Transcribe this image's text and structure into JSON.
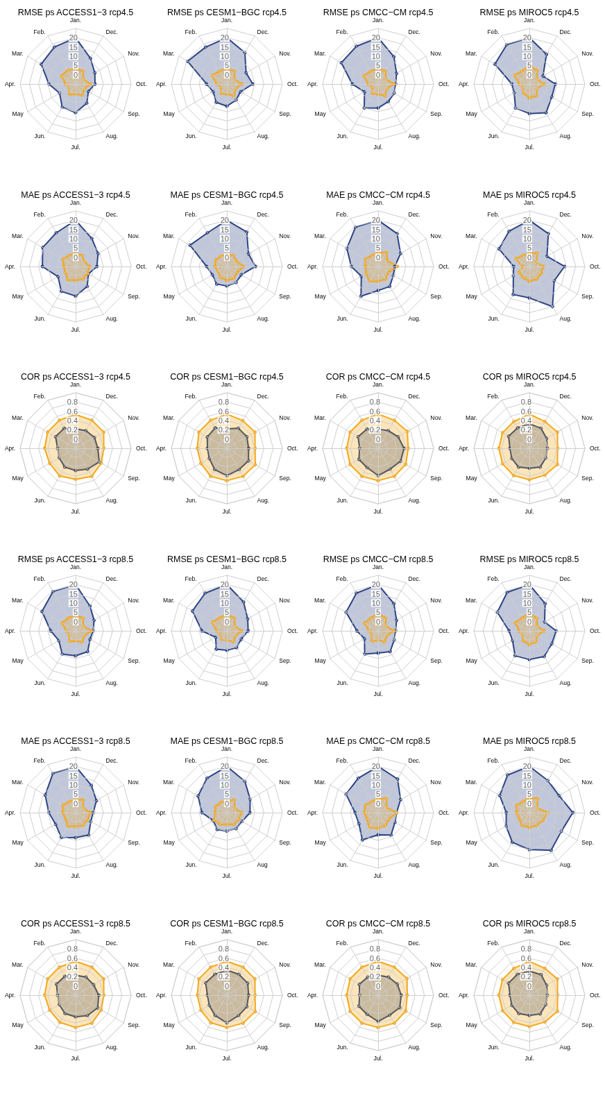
{
  "chart_data": [
    {
      "type": "radar",
      "title": "RMSE ps ACCESS1−3 rcp4.5",
      "categories": [
        "Jan.",
        "Dec.",
        "Nov.",
        "Oct.",
        "Sep.",
        "Aug.",
        "Jul.",
        "Jun.",
        "May",
        "Apr.",
        "Mar.",
        "Feb."
      ],
      "ylim": [
        -5,
        25
      ],
      "yticks": [
        0,
        5,
        10,
        15,
        20
      ],
      "grid": true,
      "marker": "circle",
      "series": [
        {
          "color": "#2e4483",
          "values": [
            20,
            11,
            7,
            5.5,
            3,
            7,
            10.5,
            9.5,
            5,
            9.5,
            16.5,
            18
          ]
        },
        {
          "color": "#f5a81c",
          "values": [
            3.5,
            3,
            0,
            3,
            0.5,
            2,
            0.5,
            1.5,
            -0.5,
            0.5,
            4,
            3.5
          ]
        }
      ]
    },
    {
      "type": "radar",
      "title": "RMSE ps CESM1−BGC rcp4.5",
      "categories": [
        "Jan.",
        "Dec.",
        "Nov.",
        "Oct.",
        "Sep.",
        "Aug.",
        "Jul.",
        "Jun.",
        "May",
        "Apr.",
        "Mar.",
        "Feb."
      ],
      "ylim": [
        -5,
        25
      ],
      "yticks": [
        0,
        5,
        10,
        15,
        20
      ],
      "grid": true,
      "marker": "circle",
      "series": [
        {
          "color": "#2e4483",
          "values": [
            20,
            14.5,
            7,
            9,
            3.5,
            5,
            7,
            6.5,
            3.5,
            6,
            19.5,
            18
          ]
        },
        {
          "color": "#f5a81c",
          "values": [
            3.5,
            3,
            0,
            3,
            0.5,
            2.5,
            0.5,
            1,
            -1,
            0.5,
            4.5,
            3
          ]
        }
      ]
    },
    {
      "type": "radar",
      "title": "RMSE ps CMCC−CM rcp4.5",
      "categories": [
        "Jan.",
        "Dec.",
        "Nov.",
        "Oct.",
        "Sep.",
        "Aug.",
        "Jul.",
        "Jun.",
        "May",
        "Apr.",
        "Mar.",
        "Feb."
      ],
      "ylim": [
        -5,
        25
      ],
      "yticks": [
        0,
        5,
        10,
        15,
        20
      ],
      "grid": true,
      "marker": "circle",
      "series": [
        {
          "color": "#2e4483",
          "values": [
            20,
            12,
            6.5,
            4.5,
            5,
            6,
            8,
            10,
            3.5,
            9,
            18,
            18.5
          ]
        },
        {
          "color": "#f5a81c",
          "values": [
            3.5,
            3,
            0,
            3.5,
            0.5,
            2.5,
            0.5,
            1,
            -1,
            0.5,
            4,
            3
          ]
        }
      ]
    },
    {
      "type": "radar",
      "title": "RMSE ps MIROC5 rcp4.5",
      "categories": [
        "Jan.",
        "Dec.",
        "Nov.",
        "Oct.",
        "Sep.",
        "Aug.",
        "Jul.",
        "Jun.",
        "May",
        "Apr.",
        "Mar.",
        "Feb."
      ],
      "ylim": [
        -5,
        25
      ],
      "yticks": [
        0,
        5,
        10,
        15,
        20
      ],
      "grid": true,
      "marker": "circle",
      "series": [
        {
          "color": "#2e4483",
          "values": [
            20,
            13.5,
            3.5,
            9,
            9,
            13,
            11,
            10,
            4.5,
            4.5,
            16.5,
            19.5
          ]
        },
        {
          "color": "#f5a81c",
          "values": [
            5,
            3.5,
            0,
            3,
            0,
            2.5,
            2.5,
            1,
            -0.5,
            0.5,
            4.5,
            3
          ]
        }
      ]
    },
    {
      "type": "radar",
      "title": "MAE ps ACCESS1−3 rcp4.5",
      "categories": [
        "Jan.",
        "Dec.",
        "Nov.",
        "Oct.",
        "Sep.",
        "Aug.",
        "Jul.",
        "Jun.",
        "May",
        "Apr.",
        "Mar.",
        "Feb."
      ],
      "ylim": [
        -5,
        25
      ],
      "yticks": [
        0,
        5,
        10,
        15,
        20
      ],
      "grid": true,
      "marker": "circle",
      "series": [
        {
          "color": "#2e4483",
          "values": [
            20,
            12.5,
            9,
            6.5,
            3,
            7.5,
            11,
            10.5,
            6,
            13,
            15.5,
            16
          ]
        },
        {
          "color": "#f5a81c",
          "values": [
            2,
            2,
            0.5,
            2.5,
            2.5,
            3,
            2.5,
            3.5,
            1.5,
            1.5,
            3,
            2
          ]
        }
      ]
    },
    {
      "type": "radar",
      "title": "MAE ps CESM1−BGC rcp4.5",
      "categories": [
        "Jan.",
        "Dec.",
        "Nov.",
        "Oct.",
        "Sep.",
        "Aug.",
        "Jul.",
        "Jun.",
        "May",
        "Apr.",
        "Mar.",
        "Feb."
      ],
      "ylim": [
        -5,
        25
      ],
      "yticks": [
        0,
        5,
        10,
        15,
        20
      ],
      "grid": true,
      "marker": "circle",
      "series": [
        {
          "color": "#2e4483",
          "values": [
            20,
            16.5,
            8.5,
            10.5,
            4,
            5,
            5.5,
            6,
            4,
            6,
            18,
            16
          ]
        },
        {
          "color": "#f5a81c",
          "values": [
            1.5,
            2,
            1,
            4,
            1.5,
            2.5,
            2.5,
            2,
            0.5,
            1.5,
            2,
            1.5
          ]
        }
      ]
    },
    {
      "type": "radar",
      "title": "MAE ps CMCC−CM rcp4.5",
      "categories": [
        "Jan.",
        "Dec.",
        "Nov.",
        "Oct.",
        "Sep.",
        "Aug.",
        "Jul.",
        "Jun.",
        "May",
        "Apr.",
        "Mar.",
        "Feb."
      ],
      "ylim": [
        -5,
        25
      ],
      "yticks": [
        0,
        5,
        10,
        15,
        20
      ],
      "grid": true,
      "marker": "circle",
      "series": [
        {
          "color": "#2e4483",
          "values": [
            20,
            15.5,
            9,
            4,
            4.5,
            7.5,
            8,
            13.5,
            5.5,
            9.5,
            14.5,
            19.5
          ]
        },
        {
          "color": "#f5a81c",
          "values": [
            2.5,
            4,
            1,
            5.5,
            1.5,
            3,
            3,
            4.5,
            2.5,
            2,
            3,
            2
          ]
        }
      ]
    },
    {
      "type": "radar",
      "title": "MAE ps MIROC5 rcp4.5",
      "categories": [
        "Jan.",
        "Dec.",
        "Nov.",
        "Oct.",
        "Sep.",
        "Aug.",
        "Jul.",
        "Jun.",
        "May",
        "Apr.",
        "Mar.",
        "Feb."
      ],
      "ylim": [
        -5,
        25
      ],
      "yticks": [
        0,
        5,
        10,
        15,
        20
      ],
      "grid": true,
      "marker": "circle",
      "series": [
        {
          "color": "#2e4483",
          "values": [
            20,
            15.5,
            6,
            14,
            10.5,
            20,
            12,
            12.5,
            5,
            3.5,
            14,
            17
          ]
        },
        {
          "color": "#f5a81c",
          "values": [
            2,
            3.5,
            -0.5,
            2.5,
            2.5,
            3,
            3,
            2,
            1.5,
            -1,
            3.5,
            2
          ]
        }
      ]
    },
    {
      "type": "radar",
      "title": "COR ps ACCESS1−3 rcp4.5",
      "categories": [
        "Jan.",
        "Dec.",
        "Nov.",
        "Oct.",
        "Sep.",
        "Aug.",
        "Jul.",
        "Jun.",
        "May",
        "Apr.",
        "Mar.",
        "Feb."
      ],
      "ylim": [
        -0.2,
        1
      ],
      "yticks": [
        0,
        0.2,
        0.4,
        0.6,
        0.8
      ],
      "grid": true,
      "marker": "circle",
      "series": [
        {
          "color": "#f5a81c",
          "values": [
            0.53,
            0.5,
            0.5,
            0.41,
            0.44,
            0.5,
            0.47,
            0.49,
            0.45,
            0.47,
            0.5,
            0.5
          ]
        },
        {
          "color": "#55565c",
          "values": [
            0.22,
            0.24,
            0.27,
            0.28,
            0.39,
            0.32,
            0.28,
            0.27,
            0.21,
            0.19,
            0.3,
            0.3
          ]
        }
      ]
    },
    {
      "type": "radar",
      "title": "COR ps CESM1−BGC rcp4.5",
      "categories": [
        "Jan.",
        "Dec.",
        "Nov.",
        "Oct.",
        "Sep.",
        "Aug.",
        "Jul.",
        "Jun.",
        "May",
        "Apr.",
        "Mar.",
        "Feb."
      ],
      "ylim": [
        -0.2,
        1
      ],
      "yticks": [
        0,
        0.2,
        0.4,
        0.6,
        0.8
      ],
      "grid": true,
      "marker": "circle",
      "series": [
        {
          "color": "#f5a81c",
          "values": [
            0.54,
            0.49,
            0.5,
            0.41,
            0.51,
            0.5,
            0.5,
            0.5,
            0.45,
            0.44,
            0.5,
            0.5
          ]
        },
        {
          "color": "#55565c",
          "values": [
            0.22,
            0.3,
            0.3,
            0.27,
            0.34,
            0.33,
            0.39,
            0.33,
            0.24,
            0.22,
            0.29,
            0.31
          ]
        }
      ]
    },
    {
      "type": "radar",
      "title": "COR ps CMCC−CM rcp4.5",
      "categories": [
        "Jan.",
        "Dec.",
        "Nov.",
        "Oct.",
        "Sep.",
        "Aug.",
        "Jul.",
        "Jun.",
        "May",
        "Apr.",
        "Mar.",
        "Feb."
      ],
      "ylim": [
        -0.2,
        1
      ],
      "yticks": [
        0,
        0.2,
        0.4,
        0.6,
        0.8
      ],
      "grid": true,
      "marker": "circle",
      "series": [
        {
          "color": "#f5a81c",
          "values": [
            0.54,
            0.5,
            0.53,
            0.45,
            0.49,
            0.5,
            0.5,
            0.5,
            0.5,
            0.48,
            0.5,
            0.5
          ]
        },
        {
          "color": "#55565c",
          "values": [
            0.21,
            0.24,
            0.3,
            0.36,
            0.36,
            0.32,
            0.39,
            0.28,
            0.28,
            0.2,
            0.3,
            0.28
          ]
        }
      ]
    },
    {
      "type": "radar",
      "title": "COR ps MIROC5 rcp4.5",
      "categories": [
        "Jan.",
        "Dec.",
        "Nov.",
        "Oct.",
        "Sep.",
        "Aug.",
        "Jul.",
        "Jun.",
        "May",
        "Apr.",
        "Mar.",
        "Feb."
      ],
      "ylim": [
        -0.2,
        1
      ],
      "yticks": [
        0,
        0.2,
        0.4,
        0.6,
        0.8
      ],
      "grid": true,
      "marker": "circle",
      "series": [
        {
          "color": "#f5a81c",
          "values": [
            0.54,
            0.47,
            0.5,
            0.41,
            0.5,
            0.47,
            0.48,
            0.48,
            0.47,
            0.46,
            0.47,
            0.47
          ]
        },
        {
          "color": "#55565c",
          "values": [
            0.33,
            0.3,
            0.23,
            0.19,
            0.21,
            0.27,
            0.23,
            0.27,
            0.24,
            0.22,
            0.32,
            0.31
          ]
        }
      ]
    },
    {
      "type": "radar",
      "title": "RMSE ps ACCESS1−3 rcp8.5",
      "categories": [
        "Jan.",
        "Dec.",
        "Nov.",
        "Oct.",
        "Sep.",
        "Aug.",
        "Jul.",
        "Jun.",
        "May",
        "Apr.",
        "Mar.",
        "Feb."
      ],
      "ylim": [
        -5,
        25
      ],
      "yticks": [
        0,
        5,
        10,
        15,
        20
      ],
      "grid": true,
      "marker": "circle",
      "series": [
        {
          "color": "#2e4483",
          "values": [
            20,
            10.5,
            6.5,
            4.5,
            4,
            8,
            8.5,
            9.5,
            5.5,
            8.5,
            16,
            19.5
          ]
        },
        {
          "color": "#f5a81c",
          "values": [
            3.5,
            3,
            0,
            3.5,
            0.5,
            2,
            0.5,
            1.5,
            -0.5,
            0,
            3.5,
            3
          ]
        }
      ]
    },
    {
      "type": "radar",
      "title": "RMSE ps CESM1−BGC rcp8.5",
      "categories": [
        "Jan.",
        "Dec.",
        "Nov.",
        "Oct.",
        "Sep.",
        "Aug.",
        "Jul.",
        "Jun.",
        "May",
        "Apr.",
        "Mar.",
        "Feb."
      ],
      "ylim": [
        -5,
        25
      ],
      "yticks": [
        0,
        5,
        10,
        15,
        20
      ],
      "grid": true,
      "marker": "circle",
      "series": [
        {
          "color": "#2e4483",
          "values": [
            20,
            13,
            8,
            6.5,
            4,
            5.5,
            5.5,
            6.5,
            2,
            8.5,
            16.5,
            18.5
          ]
        },
        {
          "color": "#f5a81c",
          "values": [
            4,
            3,
            0,
            3,
            0.5,
            2,
            0,
            0.5,
            -0.5,
            0.5,
            4.5,
            3
          ]
        }
      ]
    },
    {
      "type": "radar",
      "title": "RMSE ps CMCC−CM rcp8.5",
      "categories": [
        "Jan.",
        "Dec.",
        "Nov.",
        "Oct.",
        "Sep.",
        "Aug.",
        "Jul.",
        "Jun.",
        "May",
        "Apr.",
        "Mar.",
        "Feb."
      ],
      "ylim": [
        -5,
        25
      ],
      "yticks": [
        0,
        5,
        10,
        15,
        20
      ],
      "grid": true,
      "marker": "circle",
      "series": [
        {
          "color": "#2e4483",
          "values": [
            20,
            12,
            6.5,
            4.5,
            5,
            8,
            7,
            9.5,
            3.5,
            6.5,
            15,
            18.5
          ]
        },
        {
          "color": "#f5a81c",
          "values": [
            4.5,
            3,
            0,
            3.5,
            0.5,
            2,
            0,
            1.5,
            -0.5,
            0,
            3.5,
            3
          ]
        }
      ]
    },
    {
      "type": "radar",
      "title": "RMSE ps MIROC5 rcp8.5",
      "categories": [
        "Jan.",
        "Dec.",
        "Nov.",
        "Oct.",
        "Sep.",
        "Aug.",
        "Jul.",
        "Jun.",
        "May",
        "Apr.",
        "Mar.",
        "Feb."
      ],
      "ylim": [
        -5,
        25
      ],
      "yticks": [
        0,
        5,
        10,
        15,
        20
      ],
      "grid": true,
      "marker": "circle",
      "series": [
        {
          "color": "#2e4483",
          "values": [
            20,
            12,
            4.5,
            9.5,
            9,
            11,
            10.5,
            10.5,
            5.5,
            6,
            15,
            19
          ]
        },
        {
          "color": "#f5a81c",
          "values": [
            4.5,
            3,
            0,
            3,
            0,
            2,
            2.5,
            1.5,
            -0.5,
            0.5,
            4,
            3
          ]
        }
      ]
    },
    {
      "type": "radar",
      "title": "MAE ps ACCESS1−3 rcp8.5",
      "categories": [
        "Jan.",
        "Dec.",
        "Nov.",
        "Oct.",
        "Sep.",
        "Aug.",
        "Jul.",
        "Jun.",
        "May",
        "Apr.",
        "Mar.",
        "Feb."
      ],
      "ylim": [
        -5,
        25
      ],
      "yticks": [
        0,
        5,
        10,
        15,
        20
      ],
      "grid": true,
      "marker": "circle",
      "series": [
        {
          "color": "#2e4483",
          "values": [
            20,
            12,
            8,
            4.5,
            4.5,
            9,
            8.5,
            10.5,
            7.5,
            9.5,
            14,
            19.5
          ]
        },
        {
          "color": "#f5a81c",
          "values": [
            2,
            3,
            0,
            3,
            2.5,
            3,
            2.5,
            3.5,
            1.5,
            2,
            3,
            2
          ]
        }
      ]
    },
    {
      "type": "radar",
      "title": "MAE ps CESM1−BGC rcp8.5",
      "categories": [
        "Jan.",
        "Dec.",
        "Nov.",
        "Oct.",
        "Sep.",
        "Aug",
        "Jul.",
        "Jun.",
        "May",
        "Apr.",
        "Mar.",
        "Feb."
      ],
      "ylim": [
        -5,
        25
      ],
      "yticks": [
        0,
        5,
        10,
        15,
        20
      ],
      "grid": true,
      "marker": "circle",
      "series": [
        {
          "color": "#2e4483",
          "values": [
            20,
            14.5,
            9.5,
            7.5,
            4.5,
            5,
            5,
            5.5,
            3.5,
            8.5,
            13,
            16.5
          ]
        },
        {
          "color": "#f5a81c",
          "values": [
            1.5,
            3,
            0,
            3,
            2.5,
            2.5,
            1.5,
            2.5,
            3,
            1.5,
            2,
            1.5
          ]
        }
      ]
    },
    {
      "type": "radar",
      "title": "MAE ps CMCC−CM rcp8.5",
      "categories": [
        "Jan.",
        "Dec.",
        "Nov.",
        "Oct.",
        "Sep.",
        "Aug.",
        "Jul.",
        "Jun.",
        "May",
        "Apr.",
        "Mar.",
        "Feb."
      ],
      "ylim": [
        -5,
        25
      ],
      "yticks": [
        0,
        5,
        10,
        15,
        20
      ],
      "grid": true,
      "marker": "circle",
      "series": [
        {
          "color": "#2e4483",
          "values": [
            20,
            16,
            9,
            5,
            5.5,
            9,
            7,
            12,
            7,
            7.5,
            15,
            16.5
          ]
        },
        {
          "color": "#f5a81c",
          "values": [
            2.5,
            4,
            0.5,
            5,
            2,
            3,
            3.5,
            4.5,
            2,
            2.5,
            3,
            2
          ]
        }
      ]
    },
    {
      "type": "radar",
      "title": "MAE ps MIROC5 rcp8.5",
      "categories": [
        "Jan.",
        "Dec.",
        "Nov.",
        "Oct.",
        "Sep.",
        "Aug.",
        "Jul.",
        "Jun.",
        "May",
        "Apr.",
        "Mar.",
        "Feb."
      ],
      "ylim": [
        -5,
        25
      ],
      "yticks": [
        0,
        5,
        10,
        15,
        20
      ],
      "grid": true,
      "marker": "circle",
      "series": [
        {
          "color": "#2e4483",
          "values": [
            20,
            15,
            13.5,
            18.5,
            15,
            18.5,
            15,
            13.5,
            9.5,
            7.5,
            13.5,
            18.5
          ]
        },
        {
          "color": "#f5a81c",
          "values": [
            3,
            4,
            0,
            5,
            3.5,
            3,
            3,
            3,
            1.5,
            2,
            3,
            2
          ]
        }
      ]
    },
    {
      "type": "radar",
      "title": "COR ps ACCESS1−3 rcp8.5",
      "categories": [
        "Jan.",
        "Dec.",
        "Nov.",
        "Oct.",
        "Sep.",
        "Aug.",
        "Jul.",
        "Jun.",
        "May",
        "Apr.",
        "Mar.",
        "Feb."
      ],
      "ylim": [
        -0.2,
        1
      ],
      "yticks": [
        0,
        0.2,
        0.4,
        0.6,
        0.8
      ],
      "grid": true,
      "marker": "circle",
      "series": [
        {
          "color": "#f5a81c",
          "values": [
            0.53,
            0.5,
            0.5,
            0.41,
            0.44,
            0.5,
            0.5,
            0.48,
            0.45,
            0.47,
            0.5,
            0.5
          ]
        },
        {
          "color": "#55565c",
          "values": [
            0.23,
            0.25,
            0.25,
            0.3,
            0.35,
            0.31,
            0.27,
            0.26,
            0.21,
            0.19,
            0.28,
            0.27
          ]
        }
      ]
    },
    {
      "type": "radar",
      "title": "COR ps CESM1−BGC rcp8.5",
      "categories": [
        "Jan.",
        "Dec.",
        "Nov.",
        "Oct.",
        "Sep.",
        "Aug.",
        "Jul.",
        "Jun.",
        "May",
        "Apr.",
        "Mar.",
        "Feb."
      ],
      "ylim": [
        -0.2,
        1
      ],
      "yticks": [
        0,
        0.2,
        0.4,
        0.6,
        0.8
      ],
      "grid": true,
      "marker": "circle",
      "series": [
        {
          "color": "#f5a81c",
          "values": [
            0.53,
            0.5,
            0.5,
            0.41,
            0.51,
            0.5,
            0.5,
            0.49,
            0.45,
            0.44,
            0.5,
            0.5
          ]
        },
        {
          "color": "#55565c",
          "values": [
            0.34,
            0.32,
            0.32,
            0.27,
            0.3,
            0.31,
            0.4,
            0.31,
            0.24,
            0.22,
            0.33,
            0.32
          ]
        }
      ]
    },
    {
      "type": "radar",
      "title": "COR ps CMCC−CM rcp8.5",
      "categories": [
        "Jan.",
        "Dec.",
        "Nov.",
        "Oct.",
        "Sep.",
        "Aug.",
        "Jul.",
        "Jun.",
        "May",
        "Apr.",
        "Mar.",
        "Feb."
      ],
      "ylim": [
        -0.2,
        1
      ],
      "yticks": [
        0,
        0.2,
        0.4,
        0.6,
        0.8
      ],
      "grid": true,
      "marker": "circle",
      "series": [
        {
          "color": "#f5a81c",
          "values": [
            0.53,
            0.5,
            0.52,
            0.43,
            0.49,
            0.5,
            0.5,
            0.5,
            0.5,
            0.48,
            0.5,
            0.5
          ]
        },
        {
          "color": "#55565c",
          "values": [
            0.23,
            0.25,
            0.28,
            0.3,
            0.34,
            0.3,
            0.37,
            0.28,
            0.28,
            0.2,
            0.27,
            0.25
          ]
        }
      ]
    },
    {
      "type": "radar",
      "title": "COR ps MIROC5 rcp8.5",
      "categories": [
        "Jan.",
        "Dec.",
        "Nov.",
        "Oct.",
        "Sep.",
        "Aug.",
        "Jul.",
        "Jun.",
        "May",
        "Apr.",
        "Mar.",
        "Feb."
      ],
      "ylim": [
        -0.2,
        1
      ],
      "yticks": [
        0,
        0.2,
        0.4,
        0.6,
        0.8
      ],
      "grid": true,
      "marker": "circle",
      "series": [
        {
          "color": "#f5a81c",
          "values": [
            0.53,
            0.47,
            0.5,
            0.41,
            0.5,
            0.47,
            0.48,
            0.48,
            0.47,
            0.46,
            0.47,
            0.47
          ]
        },
        {
          "color": "#55565c",
          "values": [
            0.32,
            0.31,
            0.23,
            0.19,
            0.21,
            0.27,
            0.24,
            0.26,
            0.24,
            0.22,
            0.32,
            0.32
          ]
        }
      ]
    }
  ]
}
